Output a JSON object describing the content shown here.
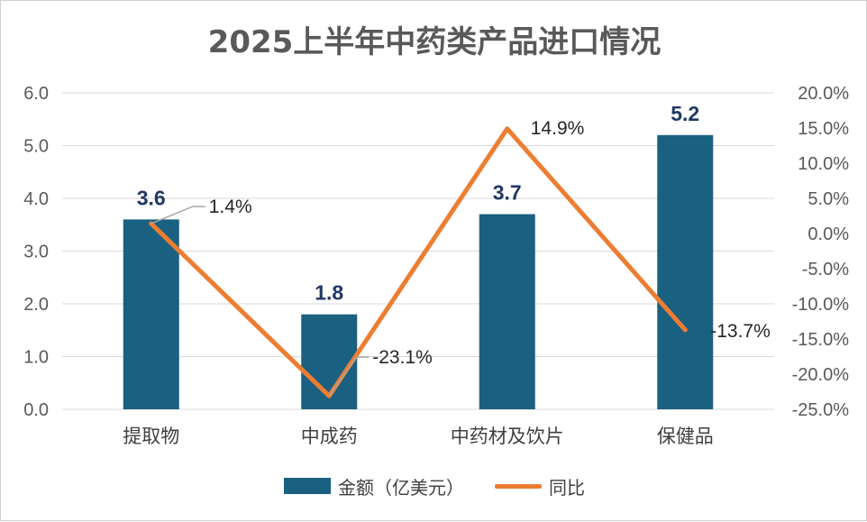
{
  "colors": {
    "bar": "#1a6080",
    "line": "#ed7d31",
    "grid": "#d9d9d9",
    "leader": "#a6a6a6"
  },
  "chart_data": {
    "type": "bar",
    "title": "2025上半年中药类产品进口情况",
    "categories": [
      "提取物",
      "中成药",
      "中药材及饮片",
      "保健品"
    ],
    "series": [
      {
        "name": "金额（亿美元）",
        "type": "bar",
        "axis": "left",
        "values": [
          3.6,
          1.8,
          3.7,
          5.2
        ],
        "labels": [
          "3.6",
          "1.8",
          "3.7",
          "5.2"
        ]
      },
      {
        "name": "同比",
        "type": "line",
        "axis": "right",
        "values": [
          1.4,
          -23.1,
          14.9,
          -13.7
        ],
        "labels": [
          "1.4%",
          "-23.1%",
          "14.9%",
          "-13.7%"
        ]
      }
    ],
    "y_left": {
      "ylim": [
        0,
        6
      ],
      "ticks": [
        "0.0",
        "1.0",
        "2.0",
        "3.0",
        "4.0",
        "5.0",
        "6.0"
      ]
    },
    "y_right": {
      "ylim": [
        -25,
        20
      ],
      "ticks": [
        "-25.0%",
        "-20.0%",
        "-15.0%",
        "-10.0%",
        "-5.0%",
        "0.0%",
        "5.0%",
        "10.0%",
        "15.0%",
        "20.0%"
      ]
    },
    "grid": true,
    "legend": "bottom"
  }
}
